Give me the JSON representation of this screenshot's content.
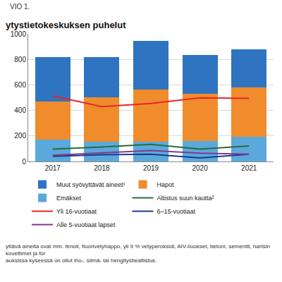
{
  "chart_data": {
    "type": "bar",
    "label": "VIO 1.",
    "title": "ytystietokeskuksen puhelut",
    "categories": [
      "2017",
      "2018",
      "2019",
      "2020",
      "2021"
    ],
    "stacked": true,
    "grid": true,
    "legend": "bottom",
    "ylim": [
      0,
      1000
    ],
    "yticks": [
      0,
      200,
      400,
      600,
      800,
      1000
    ],
    "series": [
      {
        "name": "Muut syövyttävät aineet¹",
        "type": "bar",
        "color": "#2e74c0",
        "values": [
          348,
          316,
          381,
          303,
          300
        ]
      },
      {
        "name": "Hapot",
        "type": "bar",
        "color": "#f08c2b",
        "values": [
          296,
          348,
          409,
          373,
          385
        ]
      },
      {
        "name": "Emäkset",
        "type": "bar",
        "color": "#5ba9dc",
        "values": [
          174,
          154,
          154,
          158,
          194
        ]
      },
      {
        "name": "Altistus suun kautta²",
        "type": "line",
        "color": "#2d6b3a",
        "values": [
          97,
          113,
          134,
          97,
          122
        ]
      },
      {
        "name": "Yli 16-vuotiaat",
        "type": "line",
        "color": "#e8262b",
        "values": [
          514,
          429,
          454,
          498,
          494
        ]
      },
      {
        "name": "6–15-vuotiaat",
        "type": "line",
        "color": "#1e3a8c",
        "values": [
          40,
          53,
          57,
          28,
          57
        ]
      },
      {
        "name": "Alle 5-vuotiaat lapset",
        "type": "line",
        "color": "#7e3a8c",
        "values": [
          49,
          69,
          85,
          65,
          57
        ]
      }
    ],
    "notes": [
      "yttävä aineita ovat mm. fenoli, fluorivetyhappo, yli 9 % vetyperoksidi, AIV-liuokset, betoni, sementti, hartsin kovettimet ja for",
      "auksissa kyseessä on ollut iho-, silmä- tai hengitystiealtistus."
    ]
  }
}
